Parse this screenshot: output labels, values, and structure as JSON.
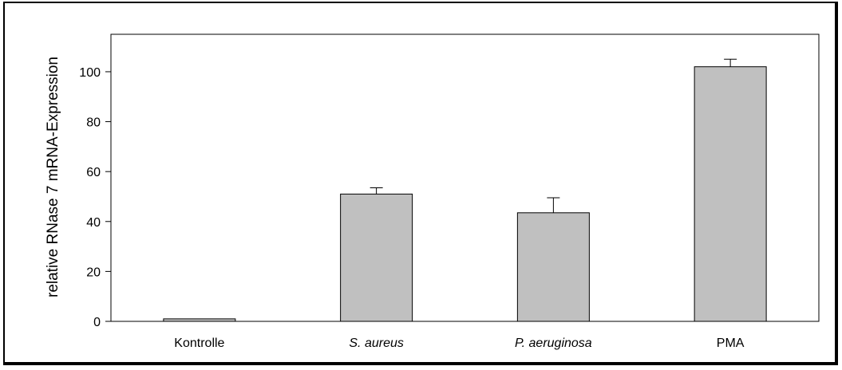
{
  "chart_data": {
    "type": "bar",
    "title": "",
    "xlabel": "",
    "ylabel": "relative RNase 7 mRNA-Expression",
    "categories": [
      "Kontrolle",
      "S. aureus",
      "P. aeruginosa",
      "PMA"
    ],
    "category_italic": [
      false,
      true,
      true,
      false
    ],
    "values": [
      1,
      51,
      43.5,
      102
    ],
    "error": [
      0,
      2.5,
      6,
      3
    ],
    "ylim": [
      0,
      115
    ],
    "yticks": [
      0,
      20,
      40,
      60,
      80,
      100
    ],
    "grid": false,
    "bar_color": "#c0c0c0"
  }
}
